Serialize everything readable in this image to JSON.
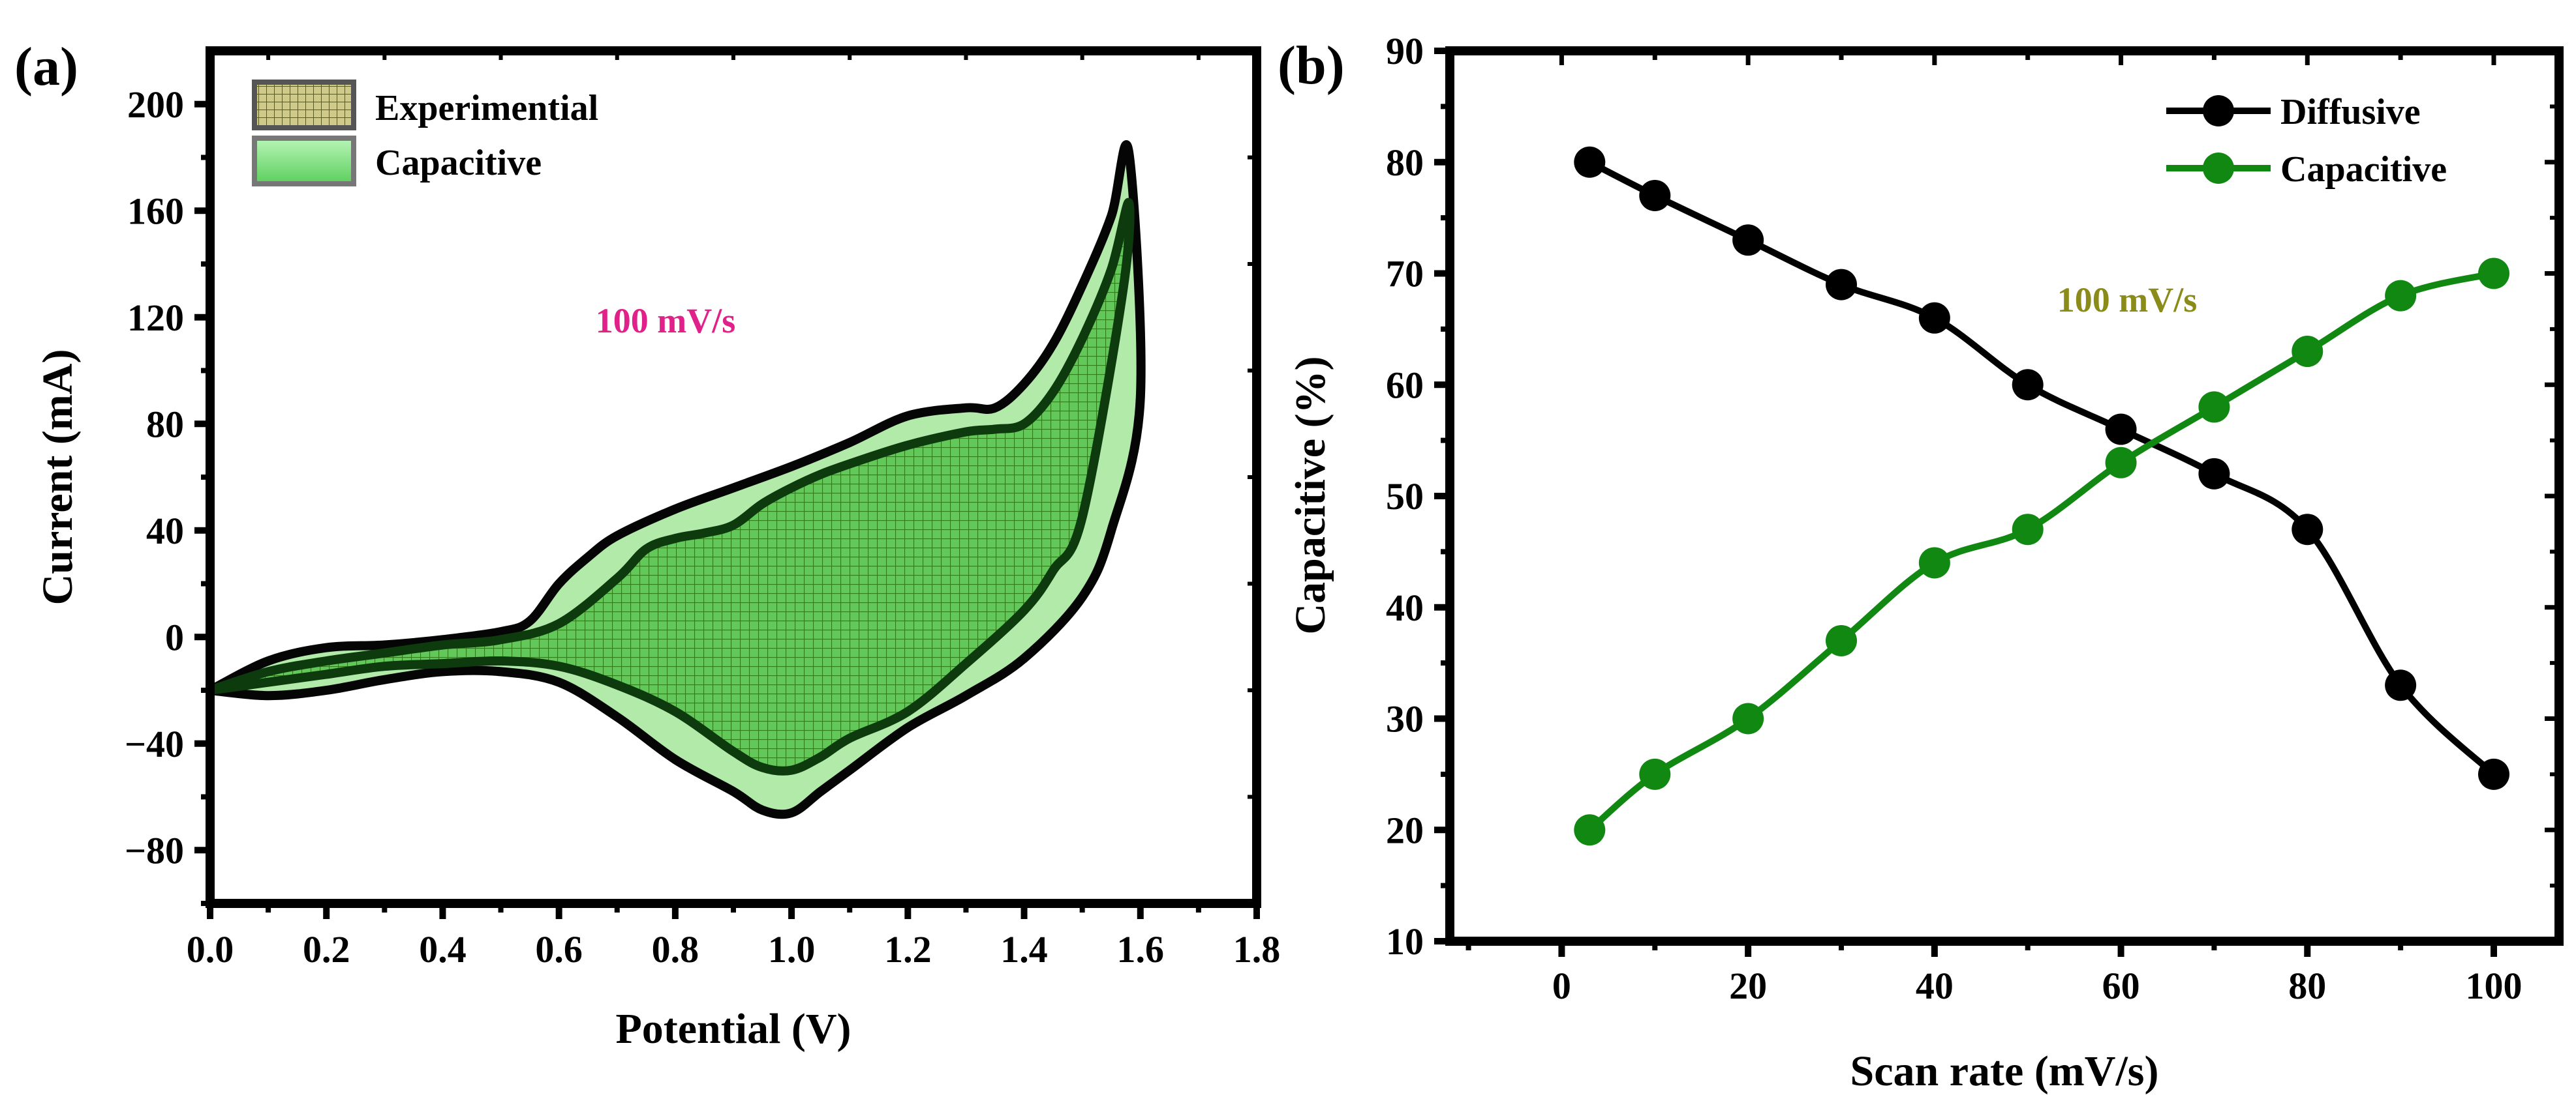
{
  "chart_data": [
    {
      "panel_label": "(a)",
      "type": "area",
      "title": "",
      "xlabel": "Potential (V)",
      "ylabel": "Current (mA)",
      "xlim": [
        0.0,
        1.8
      ],
      "ylim": [
        -100,
        220
      ],
      "xticks": [
        "0.0",
        "0.2",
        "0.4",
        "0.6",
        "0.8",
        "1.0",
        "1.2",
        "1.4",
        "1.6",
        "1.8"
      ],
      "yticks": [
        "200",
        "160",
        "120",
        "80",
        "40",
        "0",
        "−40",
        "−80"
      ],
      "annotation": "100 mV/s",
      "annotation_color": "#e0218a",
      "legend_position": "top-left",
      "series": [
        {
          "name": "Experimential",
          "color": "#cfc98a",
          "hatch_color": "#2e7d19",
          "anodic": [
            [
              0.0,
              -20
            ],
            [
              0.1,
              -9
            ],
            [
              0.2,
              -4
            ],
            [
              0.3,
              -3
            ],
            [
              0.4,
              -1
            ],
            [
              0.5,
              2
            ],
            [
              0.55,
              6
            ],
            [
              0.6,
              20
            ],
            [
              0.65,
              30
            ],
            [
              0.7,
              38
            ],
            [
              0.8,
              48
            ],
            [
              0.9,
              56
            ],
            [
              1.0,
              64
            ],
            [
              1.1,
              73
            ],
            [
              1.2,
              83
            ],
            [
              1.3,
              86
            ],
            [
              1.35,
              86
            ],
            [
              1.4,
              95
            ],
            [
              1.45,
              110
            ],
            [
              1.5,
              132
            ],
            [
              1.55,
              158
            ],
            [
              1.58,
              182
            ]
          ],
          "cathodic": [
            [
              1.58,
              182
            ],
            [
              1.6,
              90
            ],
            [
              1.55,
              40
            ],
            [
              1.5,
              15
            ],
            [
              1.4,
              -8
            ],
            [
              1.3,
              -22
            ],
            [
              1.2,
              -34
            ],
            [
              1.1,
              -50
            ],
            [
              1.05,
              -58
            ],
            [
              1.0,
              -66
            ],
            [
              0.95,
              -65
            ],
            [
              0.9,
              -58
            ],
            [
              0.8,
              -46
            ],
            [
              0.7,
              -30
            ],
            [
              0.6,
              -17
            ],
            [
              0.5,
              -13
            ],
            [
              0.4,
              -13
            ],
            [
              0.3,
              -16
            ],
            [
              0.2,
              -20
            ],
            [
              0.1,
              -22
            ],
            [
              0.0,
              -20
            ]
          ]
        },
        {
          "name": "Capacitive",
          "color": "#90ee90",
          "anodic": [
            [
              0.0,
              -20
            ],
            [
              0.1,
              -13
            ],
            [
              0.2,
              -9
            ],
            [
              0.3,
              -6
            ],
            [
              0.4,
              -3
            ],
            [
              0.5,
              -1
            ],
            [
              0.6,
              5
            ],
            [
              0.7,
              22
            ],
            [
              0.75,
              33
            ],
            [
              0.8,
              37
            ],
            [
              0.85,
              39
            ],
            [
              0.9,
              42
            ],
            [
              0.95,
              50
            ],
            [
              1.0,
              56
            ],
            [
              1.05,
              61
            ],
            [
              1.1,
              65
            ],
            [
              1.2,
              72
            ],
            [
              1.3,
              77
            ],
            [
              1.35,
              78
            ],
            [
              1.4,
              80
            ],
            [
              1.45,
              92
            ],
            [
              1.5,
              112
            ],
            [
              1.55,
              138
            ],
            [
              1.58,
              163
            ]
          ],
          "cathodic": [
            [
              1.58,
              163
            ],
            [
              1.57,
              130
            ],
            [
              1.5,
              45
            ],
            [
              1.45,
              25
            ],
            [
              1.4,
              10
            ],
            [
              1.3,
              -10
            ],
            [
              1.2,
              -28
            ],
            [
              1.1,
              -38
            ],
            [
              1.05,
              -45
            ],
            [
              1.0,
              -50
            ],
            [
              0.95,
              -49
            ],
            [
              0.9,
              -43
            ],
            [
              0.8,
              -28
            ],
            [
              0.7,
              -18
            ],
            [
              0.6,
              -11
            ],
            [
              0.5,
              -9
            ],
            [
              0.4,
              -10
            ],
            [
              0.3,
              -11
            ],
            [
              0.2,
              -14
            ],
            [
              0.1,
              -17
            ],
            [
              0.0,
              -20
            ]
          ]
        }
      ]
    },
    {
      "panel_label": "(b)",
      "type": "line",
      "title": "",
      "xlabel": "Scan rate (mV/s)",
      "ylabel": "Capacitive (%)",
      "xlim": [
        -12,
        107
      ],
      "ylim": [
        10,
        90
      ],
      "xticks": [
        "0",
        "20",
        "40",
        "60",
        "80",
        "100"
      ],
      "yticks": [
        "90",
        "80",
        "70",
        "60",
        "50",
        "40",
        "30",
        "20",
        "10"
      ],
      "annotation": "100 mV/s",
      "annotation_color": "#8b8b1a",
      "legend_position": "top-right",
      "x": [
        3,
        10,
        20,
        30,
        40,
        50,
        60,
        70,
        80,
        90,
        100
      ],
      "series": [
        {
          "name": "Diffusive",
          "color": "#000000",
          "values": [
            80,
            77,
            73,
            69,
            66,
            60,
            56,
            52,
            47,
            33,
            25
          ]
        },
        {
          "name": "Capacitive",
          "color": "#118811",
          "values": [
            20,
            25,
            30,
            37,
            44,
            47,
            53,
            58,
            63,
            68,
            70
          ]
        }
      ]
    }
  ]
}
